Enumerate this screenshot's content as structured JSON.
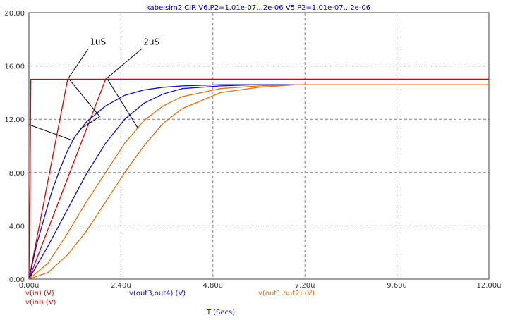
{
  "title": "kabelsim2.CIR V6.P2=1.01e-07...2e-06 V5.P2=1.01e-07...2e-06",
  "colors": {
    "axis": "#404040",
    "grid": "#808080",
    "title": "#0000b0",
    "red": "#dd0000",
    "darkred": "#b00000",
    "blue": "#1010c0",
    "orange": "#e07010",
    "annotation": "#000000"
  },
  "chart_data": {
    "type": "line",
    "title": "kabelsim2.CIR V6.P2=1.01e-07...2e-06 V5.P2=1.01e-07...2e-06",
    "xlabel": "T (Secs)",
    "ylabel": "",
    "xlim": [
      0,
      12
    ],
    "ylim": [
      0,
      20
    ],
    "x_unit": "u",
    "x_ticks": [
      "0.00u",
      "2.40u",
      "4.80u",
      "7.20u",
      "9.60u",
      "12.00u"
    ],
    "y_ticks": [
      "0.00",
      "4.00",
      "8.00",
      "12.00",
      "16.00",
      "20.00"
    ],
    "grid": true,
    "legend": [
      {
        "label": "v(in) (V)",
        "color": "#dd0000"
      },
      {
        "label": "v(inl) (V)",
        "color": "#dd0000"
      },
      {
        "label": "v(out3,out4) (V)",
        "color": "#1010c0"
      },
      {
        "label": "v(out1,out2) (V)",
        "color": "#e07010"
      }
    ],
    "series": [
      {
        "name": "v(in) (V)",
        "color": "#dd0000",
        "x": [
          0,
          0.03,
          0.05,
          12
        ],
        "y": [
          0,
          7.2,
          15,
          15
        ]
      },
      {
        "name": "v(inl) (V)",
        "color": "#dd0000",
        "x": [
          0,
          1.01,
          12
        ],
        "y": [
          0,
          15,
          15
        ]
      },
      {
        "name": "v(inl) (V)",
        "color": "#dd0000",
        "x": [
          0,
          2.0,
          12
        ],
        "y": [
          0,
          15,
          15
        ]
      },
      {
        "name": "v(out3,out4) (V)",
        "color": "#1010c0",
        "x": [
          0,
          0.2,
          0.4,
          0.6,
          0.8,
          1.0,
          1.2,
          1.5,
          2.0,
          2.5,
          3.0,
          3.5,
          4.0,
          5.0,
          6.0,
          12.0
        ],
        "y": [
          0,
          2.6,
          4.6,
          6.6,
          8.2,
          9.6,
          10.7,
          11.8,
          13.0,
          13.8,
          14.2,
          14.4,
          14.5,
          14.6,
          14.6,
          14.6
        ]
      },
      {
        "name": "v(out3,out4) (V)",
        "color": "#1010c0",
        "x": [
          0,
          0.5,
          1.0,
          1.5,
          2.0,
          2.5,
          3.0,
          3.5,
          4.0,
          5.0,
          6.0,
          12.0
        ],
        "y": [
          0,
          2.5,
          5.2,
          7.9,
          10.2,
          12.0,
          13.2,
          13.9,
          14.3,
          14.5,
          14.6,
          14.6
        ]
      },
      {
        "name": "v(out1,out2) (V)",
        "color": "#e07010",
        "x": [
          0,
          0.5,
          1.0,
          1.5,
          2.0,
          2.5,
          3.0,
          3.5,
          4.0,
          5.0,
          6.0,
          7.0,
          12.0
        ],
        "y": [
          0,
          1.2,
          3.4,
          5.8,
          8.0,
          10.2,
          11.9,
          13.0,
          13.7,
          14.3,
          14.5,
          14.6,
          14.6
        ]
      },
      {
        "name": "v(out1,out2) (V)",
        "color": "#e07010",
        "x": [
          0,
          0.5,
          1.0,
          1.5,
          2.0,
          2.5,
          3.0,
          3.5,
          4.0,
          5.0,
          6.0,
          7.0,
          12.0
        ],
        "y": [
          0,
          0.5,
          1.8,
          3.6,
          5.8,
          8.0,
          10.0,
          11.7,
          12.8,
          14.0,
          14.4,
          14.6,
          14.6
        ]
      }
    ],
    "annotations": [
      {
        "text": "1uS",
        "tx": 1.55,
        "ty": 17.5,
        "line_x": [
          1.55,
          1.01
        ],
        "line_y": [
          17.3,
          15.0
        ]
      },
      {
        "text": "2uS",
        "tx": 2.95,
        "ty": 17.5,
        "line_x": [
          2.95,
          2.0
        ],
        "line_y": [
          17.3,
          15.0
        ]
      }
    ],
    "pointer_lines": [
      {
        "x": [
          1.05,
          1.85
        ],
        "y": [
          15.0,
          12.2
        ]
      },
      {
        "x": [
          2.05,
          2.85
        ],
        "y": [
          15.0,
          11.3
        ]
      },
      {
        "x": [
          0.0,
          1.15
        ],
        "y": [
          11.6,
          10.4
        ]
      },
      {
        "x": [
          1.35,
          1.85
        ],
        "y": [
          11.3,
          12.2
        ]
      }
    ]
  }
}
